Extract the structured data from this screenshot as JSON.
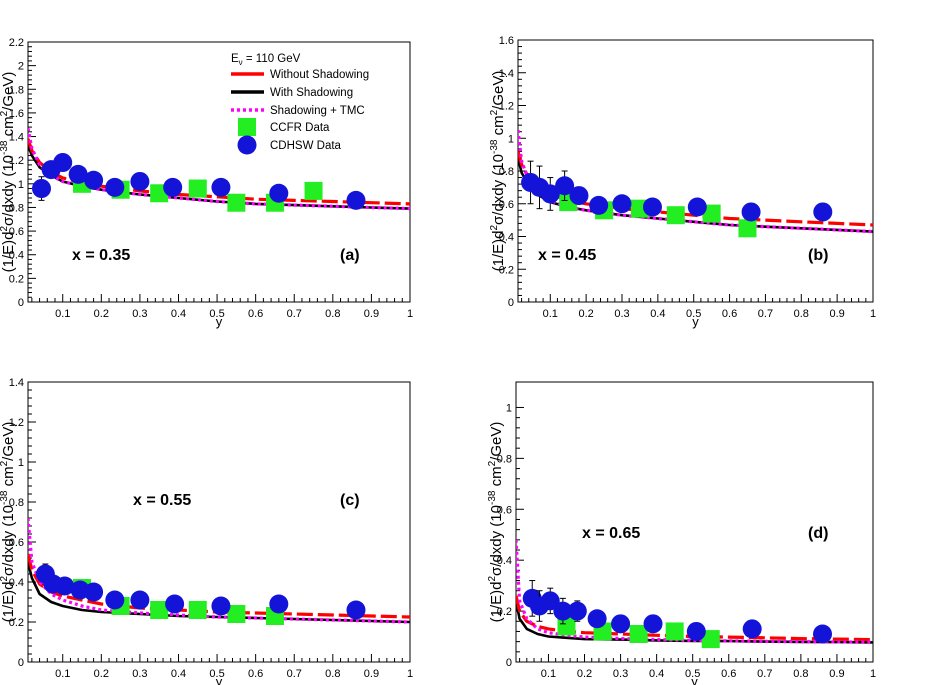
{
  "chart_data": [
    {
      "type": "line",
      "panel_letter": "(a)",
      "x_annotation": "x = 0.35",
      "xlabel": "y",
      "ylabel_prefix": "(1/E)d",
      "ylabel_mid": "σ/dxdy (10",
      "ylabel_sup": "-38",
      "ylabel_suffix": " cm",
      "ylabel_unit": "/GeV)",
      "xlim": [
        0.01,
        1.0
      ],
      "ylim": [
        0,
        2.2
      ],
      "xticks": [
        0.1,
        0.2,
        0.3,
        0.4,
        0.5,
        0.6,
        0.7,
        0.8,
        0.9,
        1
      ],
      "xtick_labels": [
        "0.1",
        "0.2",
        "0.3",
        "0.4",
        "0.5",
        "0.6",
        "0.7",
        "0.8",
        "0.9",
        "1"
      ],
      "yticks": [
        0,
        0.2,
        0.4,
        0.6,
        0.8,
        1,
        1.2,
        1.4,
        1.6,
        1.8,
        2,
        2.2
      ],
      "ytick_labels": [
        "0",
        "0.2",
        "0.4",
        "0.6",
        "0.8",
        "1",
        "1.2",
        "1.4",
        "1.6",
        "1.8",
        "2",
        "2.2"
      ],
      "legend": {
        "energy_label": "E",
        "energy_sub": "ν",
        "energy_value": " = 110 GeV",
        "entries": [
          "Without Shadowing",
          "With Shadowing",
          "Shadowing + TMC",
          "CCFR Data",
          "CDHSW Data"
        ]
      },
      "series": [
        {
          "name": "Without Shadowing",
          "color": "#ff0000",
          "style": "dashed",
          "x": [
            0.01,
            0.02,
            0.04,
            0.07,
            0.1,
            0.15,
            0.2,
            0.3,
            0.4,
            0.5,
            0.6,
            0.7,
            0.8,
            0.9,
            1.0
          ],
          "y": [
            1.38,
            1.28,
            1.18,
            1.1,
            1.05,
            1.01,
            0.98,
            0.94,
            0.91,
            0.89,
            0.87,
            0.86,
            0.85,
            0.84,
            0.83
          ]
        },
        {
          "name": "With Shadowing",
          "color": "#000000",
          "style": "solid",
          "x": [
            0.01,
            0.02,
            0.04,
            0.07,
            0.1,
            0.15,
            0.2,
            0.3,
            0.4,
            0.5,
            0.6,
            0.7,
            0.8,
            0.9,
            1.0
          ],
          "y": [
            1.33,
            1.24,
            1.14,
            1.07,
            1.02,
            0.98,
            0.95,
            0.91,
            0.88,
            0.85,
            0.83,
            0.82,
            0.81,
            0.8,
            0.79
          ]
        },
        {
          "name": "Shadowing + TMC",
          "color": "#ff00ff",
          "style": "dotted",
          "x": [
            0.01,
            0.02,
            0.04,
            0.07,
            0.1,
            0.15,
            0.2,
            0.3,
            0.4,
            0.5,
            0.6,
            0.7,
            0.8,
            0.9,
            1.0
          ],
          "y": [
            1.47,
            1.3,
            1.16,
            1.07,
            1.02,
            0.98,
            0.95,
            0.91,
            0.88,
            0.85,
            0.83,
            0.82,
            0.81,
            0.8,
            0.79
          ]
        }
      ],
      "ccfr": [
        {
          "x": 0.15,
          "y": 1.0
        },
        {
          "x": 0.25,
          "y": 0.95
        },
        {
          "x": 0.35,
          "y": 0.92
        },
        {
          "x": 0.45,
          "y": 0.96
        },
        {
          "x": 0.55,
          "y": 0.84
        },
        {
          "x": 0.65,
          "y": 0.84
        },
        {
          "x": 0.75,
          "y": 0.94
        }
      ],
      "cdhsw": [
        {
          "x": 0.045,
          "y": 0.96,
          "err": 0.1
        },
        {
          "x": 0.07,
          "y": 1.12,
          "err": 0.07
        },
        {
          "x": 0.1,
          "y": 1.18,
          "err": 0.06
        },
        {
          "x": 0.14,
          "y": 1.08,
          "err": 0.05
        },
        {
          "x": 0.18,
          "y": 1.03,
          "err": 0.04
        },
        {
          "x": 0.235,
          "y": 0.97,
          "err": 0.03
        },
        {
          "x": 0.3,
          "y": 1.02,
          "err": 0.03
        },
        {
          "x": 0.385,
          "y": 0.97,
          "err": 0.03
        },
        {
          "x": 0.51,
          "y": 0.97,
          "err": 0.03
        },
        {
          "x": 0.66,
          "y": 0.92,
          "err": 0.03
        },
        {
          "x": 0.86,
          "y": 0.86,
          "err": 0.03
        }
      ]
    },
    {
      "type": "line",
      "panel_letter": "(b)",
      "x_annotation": "x = 0.45",
      "xlabel": "y",
      "ylabel_prefix": "(1/E)d",
      "ylabel_mid": "σ/dxdy (10",
      "ylabel_sup": "-38",
      "ylabel_suffix": " cm",
      "ylabel_unit": "/GeV)",
      "xlim": [
        0.01,
        1.0
      ],
      "ylim": [
        0,
        1.6
      ],
      "xticks": [
        0.1,
        0.2,
        0.3,
        0.4,
        0.5,
        0.6,
        0.7,
        0.8,
        0.9,
        1
      ],
      "xtick_labels": [
        "0.1",
        "0.2",
        "0.3",
        "0.4",
        "0.5",
        "0.6",
        "0.7",
        "0.8",
        "0.9",
        "1"
      ],
      "yticks": [
        0,
        0.2,
        0.4,
        0.6,
        0.8,
        1,
        1.2,
        1.4,
        1.6
      ],
      "ytick_labels": [
        "0",
        "0.2",
        "0.4",
        "0.6",
        "0.8",
        "1",
        "1.2",
        "1.4",
        "1.6"
      ],
      "series": [
        {
          "name": "Without Shadowing",
          "color": "#ff0000",
          "style": "dashed",
          "x": [
            0.01,
            0.02,
            0.04,
            0.07,
            0.1,
            0.15,
            0.2,
            0.3,
            0.4,
            0.5,
            0.6,
            0.7,
            0.8,
            0.9,
            1.0
          ],
          "y": [
            0.92,
            0.84,
            0.76,
            0.7,
            0.66,
            0.62,
            0.6,
            0.57,
            0.55,
            0.53,
            0.51,
            0.5,
            0.49,
            0.48,
            0.47
          ]
        },
        {
          "name": "With Shadowing",
          "color": "#000000",
          "style": "solid",
          "x": [
            0.01,
            0.02,
            0.04,
            0.07,
            0.1,
            0.15,
            0.2,
            0.3,
            0.4,
            0.5,
            0.6,
            0.7,
            0.8,
            0.9,
            1.0
          ],
          "y": [
            0.88,
            0.79,
            0.71,
            0.65,
            0.61,
            0.58,
            0.56,
            0.53,
            0.51,
            0.49,
            0.47,
            0.46,
            0.45,
            0.44,
            0.43
          ]
        },
        {
          "name": "Shadowing + TMC",
          "color": "#ff00ff",
          "style": "dotted",
          "x": [
            0.01,
            0.02,
            0.04,
            0.07,
            0.1,
            0.15,
            0.2,
            0.3,
            0.4,
            0.5,
            0.6,
            0.7,
            0.8,
            0.9,
            1.0
          ],
          "y": [
            1.05,
            0.86,
            0.74,
            0.67,
            0.62,
            0.58,
            0.56,
            0.53,
            0.51,
            0.49,
            0.47,
            0.46,
            0.45,
            0.44,
            0.43
          ]
        }
      ],
      "ccfr": [
        {
          "x": 0.15,
          "y": 0.61
        },
        {
          "x": 0.25,
          "y": 0.56
        },
        {
          "x": 0.35,
          "y": 0.57
        },
        {
          "x": 0.45,
          "y": 0.53
        },
        {
          "x": 0.55,
          "y": 0.54
        },
        {
          "x": 0.65,
          "y": 0.45
        }
      ],
      "cdhsw": [
        {
          "x": 0.045,
          "y": 0.73,
          "err": 0.13
        },
        {
          "x": 0.07,
          "y": 0.7,
          "err": 0.13
        },
        {
          "x": 0.1,
          "y": 0.66,
          "err": 0.1
        },
        {
          "x": 0.14,
          "y": 0.71,
          "err": 0.09
        },
        {
          "x": 0.18,
          "y": 0.65,
          "err": 0.05
        },
        {
          "x": 0.235,
          "y": 0.59,
          "err": 0.04
        },
        {
          "x": 0.3,
          "y": 0.6,
          "err": 0.03
        },
        {
          "x": 0.385,
          "y": 0.58,
          "err": 0.03
        },
        {
          "x": 0.51,
          "y": 0.58,
          "err": 0.03
        },
        {
          "x": 0.66,
          "y": 0.55,
          "err": 0.03
        },
        {
          "x": 0.86,
          "y": 0.55,
          "err": 0.03
        }
      ]
    },
    {
      "type": "line",
      "panel_letter": "(c)",
      "x_annotation": "x = 0.55",
      "xlabel": "y",
      "ylabel_prefix": "(1/E)d",
      "ylabel_mid": "σ/dxdy (10",
      "ylabel_sup": "-38",
      "ylabel_suffix": " cm",
      "ylabel_unit": "/GeV)",
      "xlim": [
        0.01,
        1.0
      ],
      "ylim": [
        0,
        1.4
      ],
      "xticks": [
        0.1,
        0.2,
        0.3,
        0.4,
        0.5,
        0.6,
        0.7,
        0.8,
        0.9,
        1
      ],
      "xtick_labels": [
        "0.1",
        "0.2",
        "0.3",
        "0.4",
        "0.5",
        "0.6",
        "0.7",
        "0.8",
        "0.9",
        "1"
      ],
      "yticks": [
        0,
        0.2,
        0.4,
        0.6,
        0.8,
        1,
        1.2,
        1.4
      ],
      "ytick_labels": [
        "0",
        "0.2",
        "0.4",
        "0.6",
        "0.8",
        "1",
        "1.2",
        "1.4"
      ],
      "series": [
        {
          "name": "Without Shadowing",
          "color": "#ff0000",
          "style": "dashed",
          "x": [
            0.01,
            0.02,
            0.04,
            0.07,
            0.1,
            0.15,
            0.2,
            0.3,
            0.4,
            0.5,
            0.6,
            0.7,
            0.8,
            0.9,
            1.0
          ],
          "y": [
            0.54,
            0.46,
            0.39,
            0.35,
            0.33,
            0.31,
            0.29,
            0.27,
            0.26,
            0.25,
            0.245,
            0.24,
            0.235,
            0.23,
            0.225
          ]
        },
        {
          "name": "With Shadowing",
          "color": "#000000",
          "style": "solid",
          "x": [
            0.01,
            0.02,
            0.04,
            0.07,
            0.1,
            0.15,
            0.2,
            0.3,
            0.4,
            0.5,
            0.6,
            0.7,
            0.8,
            0.9,
            1.0
          ],
          "y": [
            0.5,
            0.42,
            0.34,
            0.3,
            0.28,
            0.26,
            0.25,
            0.24,
            0.23,
            0.225,
            0.22,
            0.215,
            0.21,
            0.205,
            0.2
          ]
        },
        {
          "name": "Shadowing + TMC",
          "color": "#ff00ff",
          "style": "dotted",
          "x": [
            0.01,
            0.02,
            0.04,
            0.07,
            0.1,
            0.15,
            0.2,
            0.3,
            0.4,
            0.5,
            0.6,
            0.7,
            0.8,
            0.9,
            1.0
          ],
          "y": [
            0.72,
            0.5,
            0.4,
            0.34,
            0.31,
            0.28,
            0.26,
            0.245,
            0.235,
            0.225,
            0.22,
            0.215,
            0.21,
            0.205,
            0.2
          ]
        }
      ],
      "ccfr": [
        {
          "x": 0.15,
          "y": 0.37
        },
        {
          "x": 0.25,
          "y": 0.28
        },
        {
          "x": 0.35,
          "y": 0.26
        },
        {
          "x": 0.45,
          "y": 0.26
        },
        {
          "x": 0.55,
          "y": 0.24
        },
        {
          "x": 0.65,
          "y": 0.23
        }
      ],
      "cdhsw": [
        {
          "x": 0.055,
          "y": 0.44,
          "err": 0.05
        },
        {
          "x": 0.075,
          "y": 0.39,
          "err": 0.04
        },
        {
          "x": 0.105,
          "y": 0.38,
          "err": 0.04
        },
        {
          "x": 0.145,
          "y": 0.36,
          "err": 0.03
        },
        {
          "x": 0.18,
          "y": 0.35,
          "err": 0.03
        },
        {
          "x": 0.235,
          "y": 0.31,
          "err": 0.02
        },
        {
          "x": 0.3,
          "y": 0.31,
          "err": 0.02
        },
        {
          "x": 0.39,
          "y": 0.29,
          "err": 0.02
        },
        {
          "x": 0.51,
          "y": 0.28,
          "err": 0.02
        },
        {
          "x": 0.66,
          "y": 0.29,
          "err": 0.02
        },
        {
          "x": 0.86,
          "y": 0.26,
          "err": 0.02
        }
      ]
    },
    {
      "type": "line",
      "panel_letter": "(d)",
      "x_annotation": "x = 0.65",
      "xlabel": "y",
      "ylabel_prefix": "(1/E)d",
      "ylabel_mid": "σ/dxdy (10",
      "ylabel_sup": "-38",
      "ylabel_suffix": " cm",
      "ylabel_unit": "/GeV)",
      "xlim": [
        0.01,
        1.0
      ],
      "ylim": [
        0,
        1.1
      ],
      "xticks": [
        0.1,
        0.2,
        0.3,
        0.4,
        0.5,
        0.6,
        0.7,
        0.8,
        0.9,
        1
      ],
      "xtick_labels": [
        "0.1",
        "0.2",
        "0.3",
        "0.4",
        "0.5",
        "0.6",
        "0.7",
        "0.8",
        "0.9",
        "1"
      ],
      "yticks": [
        0,
        0.2,
        0.4,
        0.6,
        0.8,
        1
      ],
      "ytick_labels": [
        "0",
        "0.2",
        "0.4",
        "0.6",
        "0.8",
        "1"
      ],
      "series": [
        {
          "name": "Without Shadowing",
          "color": "#ff0000",
          "style": "dashed",
          "x": [
            0.01,
            0.02,
            0.04,
            0.07,
            0.1,
            0.15,
            0.2,
            0.3,
            0.4,
            0.5,
            0.6,
            0.7,
            0.8,
            0.9,
            1.0
          ],
          "y": [
            0.26,
            0.2,
            0.16,
            0.14,
            0.13,
            0.12,
            0.115,
            0.11,
            0.105,
            0.1,
            0.098,
            0.095,
            0.092,
            0.09,
            0.088
          ]
        },
        {
          "name": "With Shadowing",
          "color": "#000000",
          "style": "solid",
          "x": [
            0.01,
            0.02,
            0.04,
            0.07,
            0.1,
            0.15,
            0.2,
            0.3,
            0.4,
            0.5,
            0.6,
            0.7,
            0.8,
            0.9,
            1.0
          ],
          "y": [
            0.24,
            0.17,
            0.13,
            0.11,
            0.1,
            0.095,
            0.09,
            0.088,
            0.085,
            0.083,
            0.082,
            0.08,
            0.079,
            0.078,
            0.077
          ]
        },
        {
          "name": "Shadowing + TMC",
          "color": "#ff00ff",
          "style": "dotted",
          "x": [
            0.01,
            0.02,
            0.04,
            0.07,
            0.1,
            0.15,
            0.2,
            0.3,
            0.4,
            0.5,
            0.6,
            0.7,
            0.8,
            0.9,
            1.0
          ],
          "y": [
            0.48,
            0.24,
            0.17,
            0.13,
            0.115,
            0.105,
            0.098,
            0.092,
            0.088,
            0.085,
            0.083,
            0.081,
            0.08,
            0.079,
            0.078
          ]
        }
      ],
      "ccfr": [
        {
          "x": 0.15,
          "y": 0.14
        },
        {
          "x": 0.25,
          "y": 0.12
        },
        {
          "x": 0.35,
          "y": 0.11
        },
        {
          "x": 0.45,
          "y": 0.12
        },
        {
          "x": 0.55,
          "y": 0.09
        }
      ],
      "cdhsw": [
        {
          "x": 0.055,
          "y": 0.25,
          "err": 0.07
        },
        {
          "x": 0.075,
          "y": 0.22,
          "err": 0.06
        },
        {
          "x": 0.105,
          "y": 0.24,
          "err": 0.05
        },
        {
          "x": 0.14,
          "y": 0.2,
          "err": 0.05
        },
        {
          "x": 0.18,
          "y": 0.2,
          "err": 0.04
        },
        {
          "x": 0.235,
          "y": 0.17,
          "err": 0.03
        },
        {
          "x": 0.3,
          "y": 0.15,
          "err": 0.02
        },
        {
          "x": 0.39,
          "y": 0.15,
          "err": 0.02
        },
        {
          "x": 0.51,
          "y": 0.12,
          "err": 0.02
        },
        {
          "x": 0.665,
          "y": 0.13,
          "err": 0.02
        },
        {
          "x": 0.86,
          "y": 0.11,
          "err": 0.02
        }
      ]
    }
  ],
  "colors": {
    "ccfr": "#22ee22",
    "cdhsw": "#1414d8",
    "without": "#ff0000",
    "with": "#000000",
    "tmc": "#ff00ff"
  }
}
